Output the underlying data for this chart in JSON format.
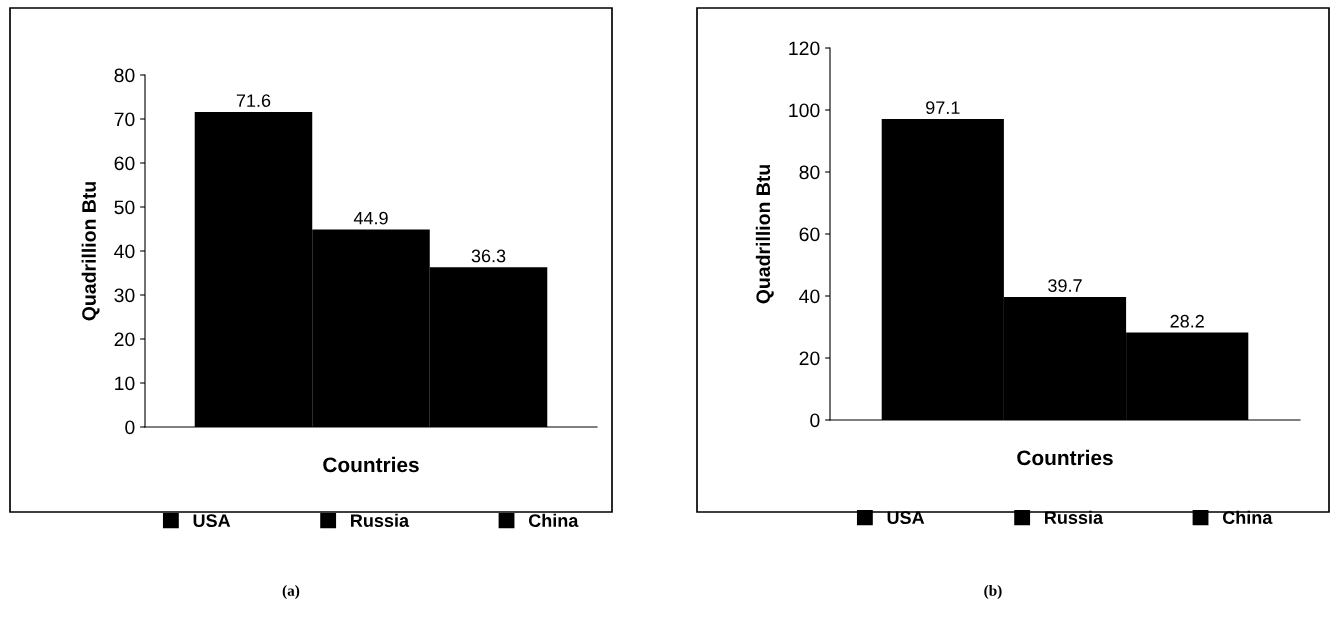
{
  "chart_data": [
    {
      "type": "bar",
      "categories": [
        null
      ],
      "xlabel": "Countries",
      "ylabel": "Quadrillion Btu",
      "ylim": [
        0,
        80
      ],
      "yticks": [
        0,
        10,
        20,
        30,
        40,
        50,
        60,
        70,
        80
      ],
      "data_labels": true,
      "legend": "bottom",
      "grid": false,
      "annotations": [
        "(a)"
      ],
      "series": [
        {
          "name": "USA",
          "color": "#000000",
          "values": [
            71.6
          ]
        },
        {
          "name": "Russia",
          "color": "#000000",
          "values": [
            44.9
          ]
        },
        {
          "name": "China",
          "color": "#000000",
          "values": [
            36.3
          ]
        }
      ]
    },
    {
      "type": "bar",
      "categories": [
        null
      ],
      "xlabel": "Countries",
      "ylabel": "Quadrillion Btu",
      "ylim": [
        0,
        120
      ],
      "yticks": [
        0,
        20,
        40,
        60,
        80,
        100,
        120
      ],
      "data_labels": true,
      "legend": "bottom",
      "grid": false,
      "annotations": [
        "(b)"
      ],
      "series": [
        {
          "name": "USA",
          "color": "#000000",
          "values": [
            97.1
          ]
        },
        {
          "name": "Russia",
          "color": "#000000",
          "values": [
            39.7
          ]
        },
        {
          "name": "China",
          "color": "#000000",
          "values": [
            28.2
          ]
        }
      ]
    }
  ]
}
